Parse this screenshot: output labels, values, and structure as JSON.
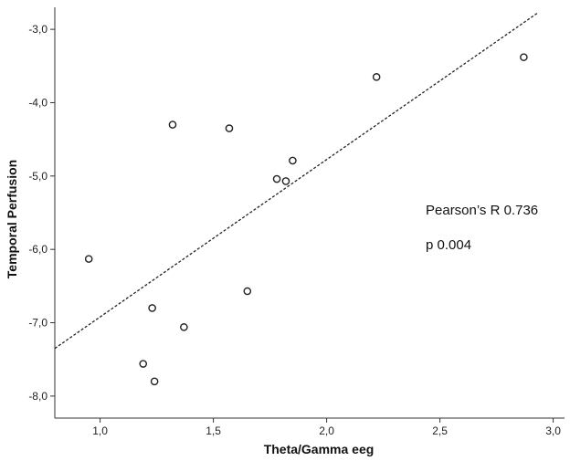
{
  "chart_data": {
    "type": "scatter",
    "xlabel": "Theta/Gamma eeg",
    "ylabel": "Temporal Perfusion",
    "xlim": [
      0.8,
      3.05
    ],
    "ylim": [
      -8.3,
      -2.7
    ],
    "x_ticks": [
      1.0,
      1.5,
      2.0,
      2.5,
      3.0
    ],
    "y_ticks": [
      -3.0,
      -4.0,
      -5.0,
      -6.0,
      -7.0,
      -8.0
    ],
    "x_tick_labels": [
      "1,0",
      "1,5",
      "2,0",
      "2,5",
      "3,0"
    ],
    "y_tick_labels": [
      "-3,0",
      "-4,0",
      "-5,0",
      "-6,0",
      "-7,0",
      "-8,0"
    ],
    "grid": false,
    "points": [
      {
        "x": 0.95,
        "y": -6.13
      },
      {
        "x": 1.19,
        "y": -7.56
      },
      {
        "x": 1.23,
        "y": -6.8
      },
      {
        "x": 1.24,
        "y": -7.8
      },
      {
        "x": 1.32,
        "y": -4.3
      },
      {
        "x": 1.37,
        "y": -7.06
      },
      {
        "x": 1.57,
        "y": -4.35
      },
      {
        "x": 1.65,
        "y": -6.57
      },
      {
        "x": 1.78,
        "y": -5.04
      },
      {
        "x": 1.82,
        "y": -5.07
      },
      {
        "x": 1.85,
        "y": -4.79
      },
      {
        "x": 2.22,
        "y": -3.65
      },
      {
        "x": 2.87,
        "y": -3.38
      }
    ],
    "fit_line": {
      "style": "dashed",
      "x": [
        0.8,
        2.93
      ],
      "y": [
        -7.35,
        -2.78
      ]
    },
    "annotations": [
      "Pearson’s R 0.736",
      "p 0.004"
    ]
  }
}
